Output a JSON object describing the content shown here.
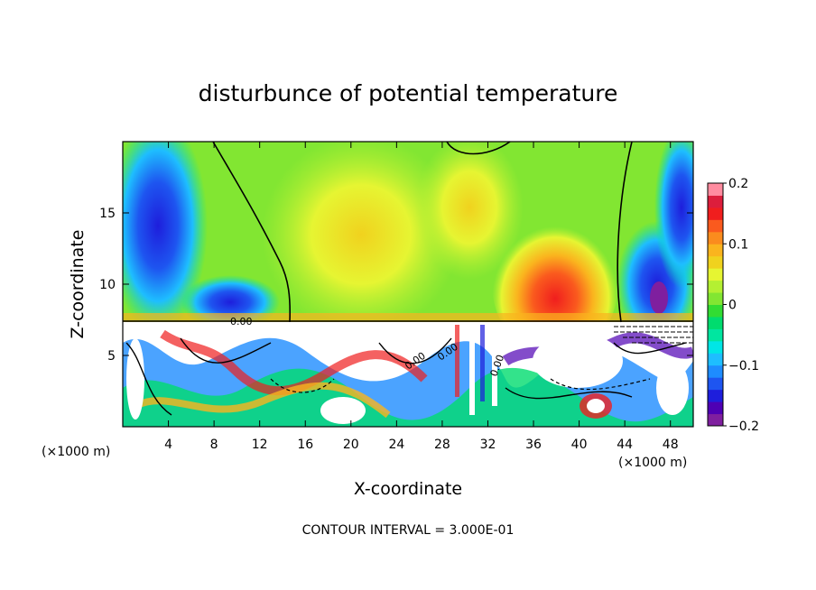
{
  "chart_data": {
    "type": "heatmap",
    "title": "disturbunce of potential temperature",
    "xlabel": "X-coordinate",
    "ylabel": "Z-coordinate",
    "x_unit_left": "(×1000 m)",
    "x_unit_right": "(×1000 m)",
    "xlim": [
      0,
      50
    ],
    "ylim": [
      0,
      20
    ],
    "x_ticks": [
      4,
      8,
      12,
      16,
      20,
      24,
      28,
      32,
      36,
      40,
      44,
      48
    ],
    "y_ticks": [
      5,
      10,
      15
    ],
    "colorbar": {
      "min": -0.2,
      "max": 0.2,
      "ticks": [
        -0.2,
        -0.1,
        0,
        0.1,
        0.2
      ],
      "tick_labels": [
        "−0.2",
        "−0.1",
        "0",
        "0.1",
        "0.2"
      ],
      "colors": [
        "#7f1f9f",
        "#4e00b4",
        "#1e1edc",
        "#1e55f0",
        "#1e8cff",
        "#1ebeff",
        "#00e6e6",
        "#00e6a0",
        "#00dc6e",
        "#32dc32",
        "#82e632",
        "#b4f032",
        "#e6f532",
        "#f0d21e",
        "#fab41e",
        "#fa8c1e",
        "#fa5a1e",
        "#f01e1e",
        "#dc1e3c",
        "#ff8ca0"
      ]
    },
    "annotation": "CONTOUR INTERVAL = 3.000E-01",
    "contour_labels": [
      "0.00",
      "0.00",
      "0.00",
      "0.00"
    ]
  }
}
